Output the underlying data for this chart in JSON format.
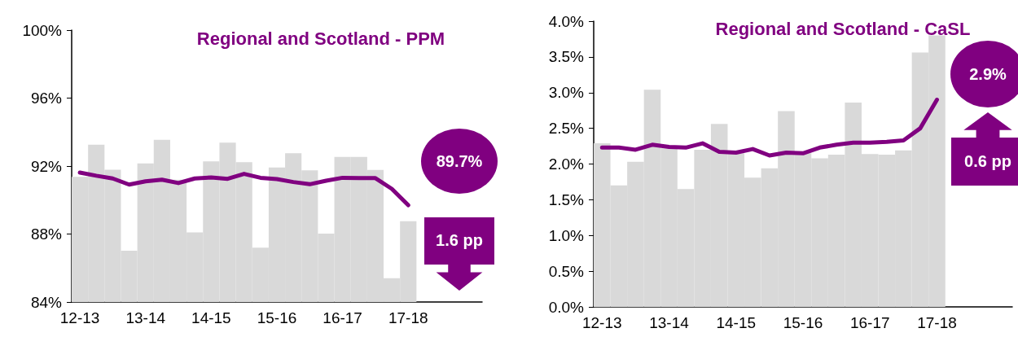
{
  "chart_data": [
    {
      "type": "bar",
      "title": "Regional and Scotland - PPM",
      "categories": [
        "12-13",
        null,
        null,
        null,
        "13-14",
        null,
        null,
        null,
        "14-15",
        null,
        null,
        null,
        "15-16",
        null,
        null,
        null,
        "16-17",
        null,
        null,
        null,
        "17-18",
        null,
        null,
        null,
        null
      ],
      "series": [
        {
          "color": "#d9d9d9",
          "values": [
            91.37,
            93.26,
            91.79,
            87.02,
            92.15,
            93.55,
            91.2,
            88.1,
            92.27,
            93.38,
            92.23,
            87.2,
            91.92,
            92.75,
            91.75,
            88.02,
            92.54,
            92.54,
            91.77,
            85.4,
            88.75,
            null,
            null,
            null,
            null
          ]
        },
        {
          "type": "line",
          "color": "#800080",
          "values": [
            91.62,
            91.43,
            91.27,
            90.91,
            91.1,
            91.2,
            91.0,
            91.27,
            91.33,
            91.25,
            91.54,
            91.31,
            91.23,
            91.06,
            90.93,
            91.14,
            91.31,
            91.29,
            91.29,
            90.66,
            89.7,
            null,
            null,
            null,
            null
          ]
        }
      ],
      "ylim": [
        84,
        100
      ],
      "yticks": [
        {
          "value": 84,
          "label": "84%"
        },
        {
          "value": 88,
          "label": "88%"
        },
        {
          "value": 92,
          "label": "92%"
        },
        {
          "value": 96,
          "label": "96%"
        },
        {
          "value": 100,
          "label": "100%"
        }
      ],
      "annotations": [
        "89.7%",
        "1.6 pp"
      ],
      "marker": "none",
      "line_style": "solid",
      "grid": false
    },
    {
      "type": "bar",
      "title": "Regional and Scotland - CaSL",
      "categories": [
        "12-13",
        null,
        null,
        null,
        "13-14",
        null,
        null,
        null,
        "14-15",
        null,
        null,
        null,
        "15-16",
        null,
        null,
        null,
        "16-17",
        null,
        null,
        null,
        "17-18",
        null,
        null,
        null,
        null
      ],
      "series": [
        {
          "color": "#d9d9d9",
          "values": [
            2.29,
            1.7,
            2.03,
            3.04,
            2.22,
            1.65,
            2.2,
            2.56,
            2.15,
            1.81,
            1.94,
            2.74,
            2.15,
            2.08,
            2.13,
            2.86,
            2.14,
            2.13,
            2.19,
            3.56,
            3.8,
            null,
            null,
            null,
            null
          ]
        },
        {
          "type": "line",
          "color": "#800080",
          "values": [
            2.23,
            2.23,
            2.2,
            2.27,
            2.24,
            2.23,
            2.29,
            2.17,
            2.16,
            2.21,
            2.12,
            2.16,
            2.15,
            2.23,
            2.27,
            2.3,
            2.3,
            2.31,
            2.33,
            2.5,
            2.9,
            null,
            null,
            null,
            null
          ]
        }
      ],
      "ylim": [
        0,
        4
      ],
      "yticks": [
        {
          "value": 0,
          "label": "0.0%"
        },
        {
          "value": 0.5,
          "label": "0.5%"
        },
        {
          "value": 1,
          "label": "1.0%"
        },
        {
          "value": 1.5,
          "label": "1.5%"
        },
        {
          "value": 2,
          "label": "2.0%"
        },
        {
          "value": 2.5,
          "label": "2.5%"
        },
        {
          "value": 3,
          "label": "3.0%"
        },
        {
          "value": 3.5,
          "label": "3.5%"
        },
        {
          "value": 4,
          "label": "4.0%"
        }
      ],
      "annotations": [
        "2.9%",
        "0.6 pp"
      ],
      "marker": "none",
      "line_style": "solid",
      "grid": false
    }
  ]
}
